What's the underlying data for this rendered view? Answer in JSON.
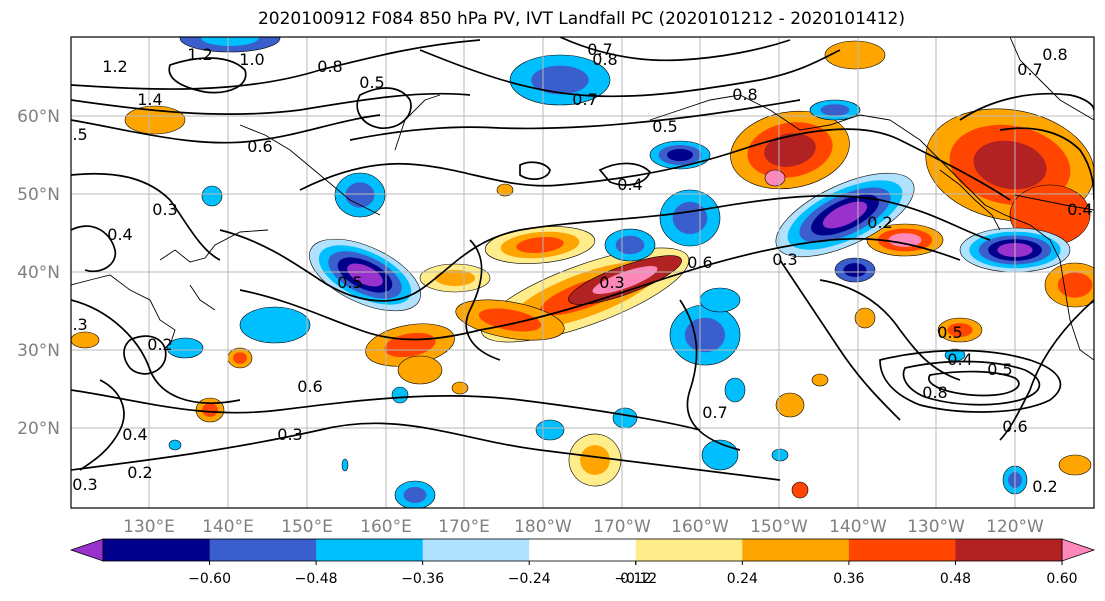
{
  "title": "2020100912 F084 850 hPa PV, IVT Landfall PC (2020101212 - 2020101412)",
  "lat_labels": [
    "60°N",
    "50°N",
    "40°N",
    "30°N",
    "20°N"
  ],
  "lon_labels": [
    "130°E",
    "140°E",
    "150°E",
    "160°E",
    "170°E",
    "180°W",
    "170°W",
    "160°W",
    "150°W",
    "140°W",
    "130°W",
    "120°W"
  ],
  "contour_labels": [
    "1.2",
    "1.4",
    "1.2",
    "1.0",
    "0.8",
    "0.5",
    "0.7",
    "0.8",
    "0.7",
    "0.8",
    "0.6",
    "0.5",
    "0.4",
    "0.7",
    "0.8",
    "0.5",
    "0.4",
    "0.3",
    "0.2",
    "0.3",
    "0.6",
    "0.3",
    "0.4",
    "0.5",
    "0.6",
    "0.4",
    "0.5",
    "0.8",
    "0.7",
    "0.6",
    "0.3",
    "0.4",
    "0.2",
    "0.2",
    "0.3",
    "0.3",
    "0.2",
    "0.5"
  ],
  "colorbar": {
    "tick_labels": [
      "−0.60",
      "−0.48",
      "−0.36",
      "−0.24",
      "−0.12",
      "0.12",
      "0.24",
      "0.36",
      "0.48",
      "0.60"
    ],
    "colors": [
      "#9932cc",
      "#00008b",
      "#3a5fcd",
      "#00bfff",
      "#b0e2ff",
      "#ffffff",
      "#ffec8b",
      "#ffa500",
      "#ff4500",
      "#b22222",
      "#ff88bb"
    ]
  }
}
